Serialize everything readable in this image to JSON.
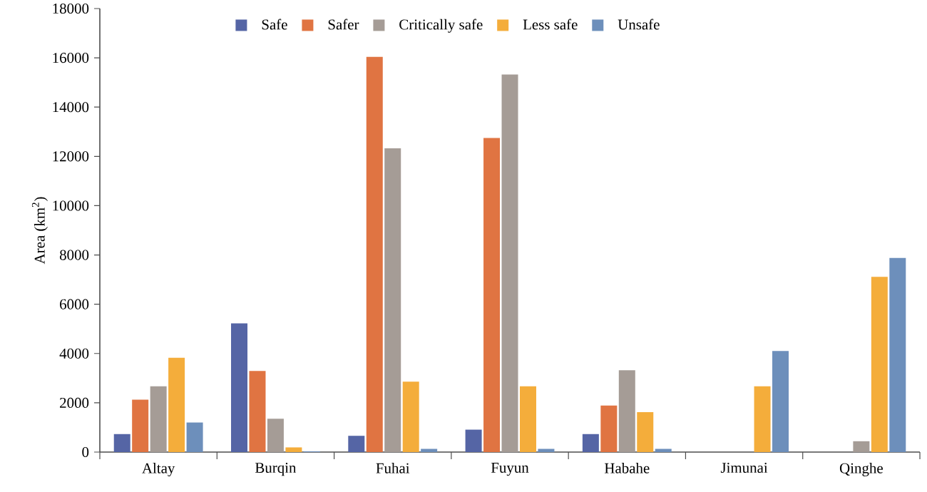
{
  "chart_data": {
    "type": "bar",
    "ylabel": "Area (km$^{2}$)",
    "categories": [
      "Altay",
      "Burqin",
      "Fuhai",
      "Fuyun",
      "Habahe",
      "Jimunai",
      "Qinghe"
    ],
    "series": [
      {
        "name": "Safe",
        "color": "#5565a5",
        "values": [
          730,
          5220,
          660,
          910,
          730,
          null,
          null
        ]
      },
      {
        "name": "Safer",
        "color": "#e07442",
        "values": [
          2130,
          3290,
          16040,
          12750,
          1890,
          null,
          null
        ]
      },
      {
        "name": "Critically safe",
        "color": "#a59c96",
        "values": [
          2670,
          1350,
          12330,
          15320,
          3320,
          null,
          440
        ]
      },
      {
        "name": "Less safe",
        "color": "#f4ad3b",
        "values": [
          3830,
          190,
          2860,
          2670,
          1620,
          2670,
          7110
        ]
      },
      {
        "name": "Unsafe",
        "color": "#6d8fbb",
        "values": [
          1200,
          30,
          130,
          130,
          130,
          4100,
          7880
        ]
      }
    ],
    "ylim": [
      0,
      18000
    ],
    "yticks": [
      0,
      2000,
      4000,
      6000,
      8000,
      10000,
      12000,
      14000,
      16000,
      18000
    ],
    "grid": false,
    "legend": "top"
  }
}
